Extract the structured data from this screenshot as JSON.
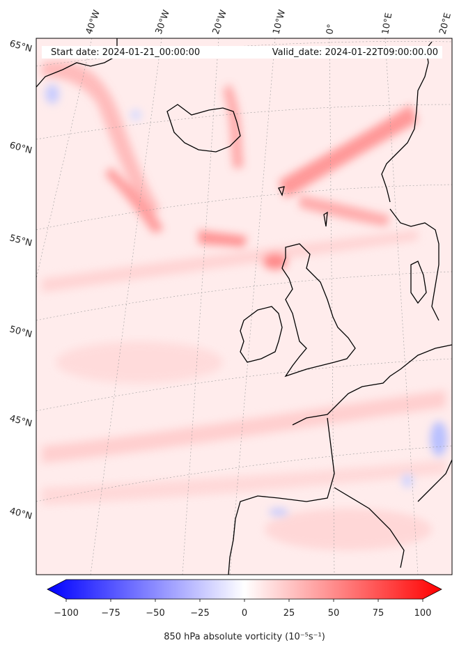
{
  "header": {
    "start_date": "Start date: 2024-01-21_00:00:00",
    "valid_date": "Valid_date: 2024-01-22T09:00:00.00"
  },
  "map": {
    "lon_labels": [
      "40°W",
      "30°W",
      "20°W",
      "10°W",
      "0°",
      "10°E",
      "20°E"
    ],
    "lat_labels": [
      "65°N",
      "60°N",
      "55°N",
      "50°N",
      "45°N",
      "40°N"
    ],
    "field": "850 hPa absolute vorticity",
    "gridlines": "dashed"
  },
  "colorbar": {
    "label": "850 hPa absolute vorticity (10⁻⁵s⁻¹)",
    "ticks": [
      "−100",
      "−75",
      "−50",
      "−25",
      "0",
      "25",
      "50",
      "75",
      "100"
    ],
    "range": [
      -100,
      100
    ],
    "low_color": "#0000ff",
    "mid_color": "#ffffff",
    "high_color": "#ff0000",
    "extend": "both"
  }
}
